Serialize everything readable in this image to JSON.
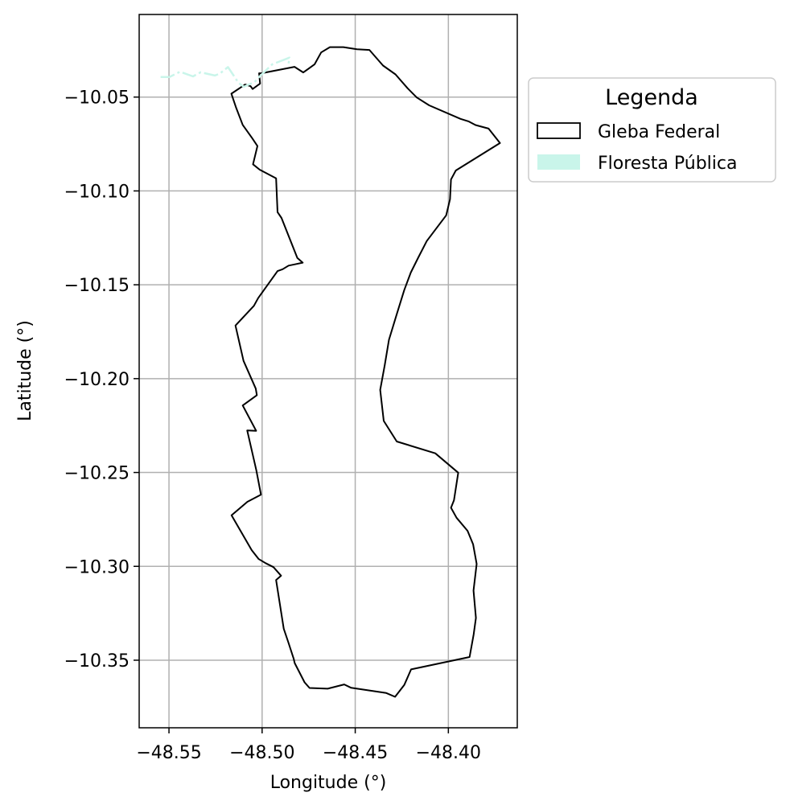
{
  "chart_data": {
    "type": "map",
    "xlabel": "Longitude (°)",
    "ylabel": "Latitude (°)",
    "xlim": [
      -48.566,
      -48.363
    ],
    "ylim": [
      -10.386,
      -10.006
    ],
    "xticks": [
      -48.55,
      -48.5,
      -48.45,
      -48.4
    ],
    "xtick_labels": [
      "−48.55",
      "−48.50",
      "−48.45",
      "−48.40"
    ],
    "yticks": [
      -10.05,
      -10.1,
      -10.15,
      -10.2,
      -10.25,
      -10.3,
      -10.35
    ],
    "ytick_labels": [
      "−10.05",
      "−10.10",
      "−10.15",
      "−10.20",
      "−10.25",
      "−10.30",
      "−10.35"
    ],
    "grid": true,
    "legend": {
      "title": "Legenda",
      "placement": "outside-right-top",
      "entries": [
        {
          "label": "Gleba Federal",
          "style": "outline",
          "color": "#000000"
        },
        {
          "label": "Floresta Pública",
          "style": "fill",
          "color": "#c9f5ea"
        }
      ]
    },
    "series": [
      {
        "name": "Gleba Federal",
        "kind": "polygon",
        "stroke": "#000000",
        "fill": "none",
        "coordinates": [
          [
            -48.5004,
            -10.0373
          ],
          [
            -48.4826,
            -10.0339
          ],
          [
            -48.4779,
            -10.0369
          ],
          [
            -48.4718,
            -10.0325
          ],
          [
            -48.4683,
            -10.0262
          ],
          [
            -48.4636,
            -10.0234
          ],
          [
            -48.4564,
            -10.0234
          ],
          [
            -48.4491,
            -10.0245
          ],
          [
            -48.4424,
            -10.0249
          ],
          [
            -48.4351,
            -10.0332
          ],
          [
            -48.4284,
            -10.0379
          ],
          [
            -48.4219,
            -10.0453
          ],
          [
            -48.417,
            -10.0502
          ],
          [
            -48.4103,
            -10.0544
          ],
          [
            -48.3935,
            -10.0616
          ],
          [
            -48.389,
            -10.063
          ],
          [
            -48.3854,
            -10.0649
          ],
          [
            -48.3784,
            -10.0668
          ],
          [
            -48.3723,
            -10.0745
          ],
          [
            -48.396,
            -10.0891
          ],
          [
            -48.3986,
            -10.0939
          ],
          [
            -48.3991,
            -10.1044
          ],
          [
            -48.4012,
            -10.113
          ],
          [
            -48.4116,
            -10.1267
          ],
          [
            -48.4162,
            -10.1356
          ],
          [
            -48.4202,
            -10.1435
          ],
          [
            -48.4237,
            -10.1528
          ],
          [
            -48.428,
            -10.1666
          ],
          [
            -48.4319,
            -10.1793
          ],
          [
            -48.4342,
            -10.1929
          ],
          [
            -48.4366,
            -10.206
          ],
          [
            -48.4347,
            -10.2225
          ],
          [
            -48.4277,
            -10.2335
          ],
          [
            -48.407,
            -10.2398
          ],
          [
            -48.3947,
            -10.2501
          ],
          [
            -48.397,
            -10.2648
          ],
          [
            -48.3986,
            -10.2688
          ],
          [
            -48.3956,
            -10.2741
          ],
          [
            -48.3897,
            -10.2811
          ],
          [
            -48.3867,
            -10.2883
          ],
          [
            -48.3848,
            -10.2987
          ],
          [
            -48.3865,
            -10.3129
          ],
          [
            -48.3852,
            -10.3275
          ],
          [
            -48.3864,
            -10.3362
          ],
          [
            -48.3886,
            -10.3483
          ],
          [
            -48.42,
            -10.3549
          ],
          [
            -48.4237,
            -10.3632
          ],
          [
            -48.4286,
            -10.3695
          ],
          [
            -48.4333,
            -10.3675
          ],
          [
            -48.4522,
            -10.3647
          ],
          [
            -48.4559,
            -10.3629
          ],
          [
            -48.4648,
            -10.3652
          ],
          [
            -48.4745,
            -10.3648
          ],
          [
            -48.4772,
            -10.3618
          ],
          [
            -48.4825,
            -10.3515
          ],
          [
            -48.483,
            -10.3494
          ],
          [
            -48.4859,
            -10.3406
          ],
          [
            -48.4884,
            -10.3332
          ],
          [
            -48.4925,
            -10.3073
          ],
          [
            -48.4898,
            -10.305
          ],
          [
            -48.4939,
            -10.3004
          ],
          [
            -48.4981,
            -10.2983
          ],
          [
            -48.5018,
            -10.2961
          ],
          [
            -48.5056,
            -10.2913
          ],
          [
            -48.5164,
            -10.2728
          ],
          [
            -48.5079,
            -10.2656
          ],
          [
            -48.5006,
            -10.2618
          ],
          [
            -48.5031,
            -10.2488
          ],
          [
            -48.508,
            -10.2276
          ],
          [
            -48.5032,
            -10.2278
          ],
          [
            -48.5104,
            -10.2143
          ],
          [
            -48.5028,
            -10.2088
          ],
          [
            -48.5034,
            -10.2053
          ],
          [
            -48.51,
            -10.1905
          ],
          [
            -48.5143,
            -10.1717
          ],
          [
            -48.5044,
            -10.1612
          ],
          [
            -48.5021,
            -10.1571
          ],
          [
            -48.4917,
            -10.1427
          ],
          [
            -48.489,
            -10.1417
          ],
          [
            -48.4858,
            -10.1398
          ],
          [
            -48.4824,
            -10.1391
          ],
          [
            -48.4782,
            -10.1382
          ],
          [
            -48.4811,
            -10.1357
          ],
          [
            -48.4896,
            -10.1144
          ],
          [
            -48.4917,
            -10.1113
          ],
          [
            -48.4925,
            -10.0933
          ],
          [
            -48.5013,
            -10.0887
          ],
          [
            -48.5049,
            -10.0858
          ],
          [
            -48.5025,
            -10.0761
          ],
          [
            -48.5054,
            -10.0718
          ],
          [
            -48.5104,
            -10.0648
          ],
          [
            -48.5141,
            -10.0553
          ],
          [
            -48.5165,
            -10.0482
          ],
          [
            -48.5091,
            -10.0433
          ],
          [
            -48.5062,
            -10.0442
          ],
          [
            -48.5051,
            -10.0457
          ],
          [
            -48.5011,
            -10.0428
          ],
          [
            -48.5016,
            -10.0373
          ]
        ]
      },
      {
        "name": "Floresta Pública",
        "kind": "polyline",
        "stroke": "#c9f5ea",
        "fill": "none",
        "coordinates": [
          [
            -48.5545,
            -10.0393
          ],
          [
            -48.5497,
            -10.0393
          ],
          [
            -48.5441,
            -10.0365
          ],
          [
            -48.5371,
            -10.039
          ],
          [
            -48.533,
            -10.0368
          ],
          [
            -48.5254,
            -10.0385
          ],
          [
            -48.5227,
            -10.0375
          ],
          [
            -48.5183,
            -10.034
          ],
          [
            -48.5126,
            -10.0425
          ],
          [
            -48.5098,
            -10.0445
          ],
          [
            -48.504,
            -10.042
          ],
          [
            -48.5013,
            -10.039
          ],
          [
            -48.4945,
            -10.0325
          ],
          [
            -48.4853,
            -10.029
          ],
          [
            -48.4858,
            -10.0322
          ]
        ]
      }
    ]
  }
}
